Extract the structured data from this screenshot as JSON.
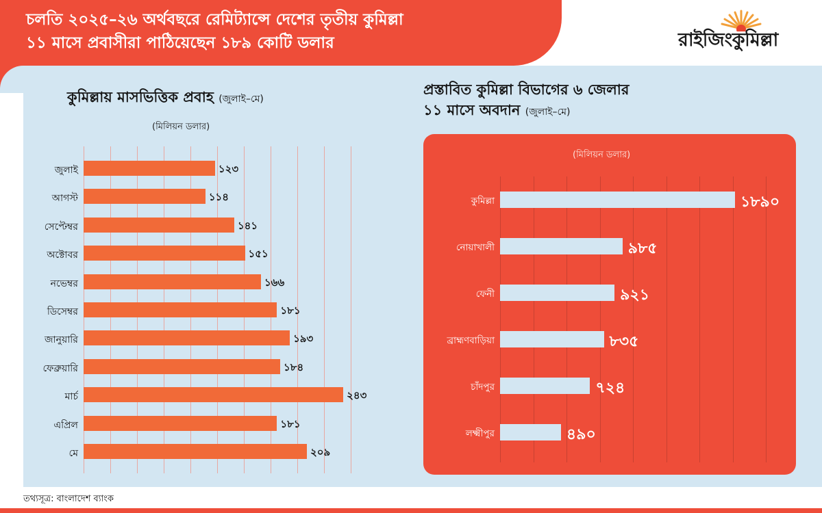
{
  "header": {
    "title_line1": "চলতি ২০২৫–২৬ অর্থবছরে রেমিট্যান্সে দেশের তৃতীয় কুমিল্লা",
    "title_line2": "১১ মাসে প্রবাসীরা পাঠিয়েছেন ১৮৯ কোটি ডলার"
  },
  "logo": {
    "text": "রাইজিংকুমিল্লা"
  },
  "colors": {
    "accent": "#ee4d39",
    "bar_orange": "#f16a38",
    "panel": "#d3e6f2",
    "bar_light": "#d3e6f2"
  },
  "chart_data": [
    {
      "type": "bar",
      "orientation": "horizontal",
      "title": "কুমিল্লায় মাসভিত্তিক প্রবাহ",
      "title_note": "(জুলাই–মে)",
      "unit": "(মিলিয়ন ডলার)",
      "categories": [
        "জুলাই",
        "আগস্ট",
        "সেপ্টেম্বর",
        "অক্টোবর",
        "নভেম্বর",
        "ডিসেম্বর",
        "জানুয়ারি",
        "ফেব্রুয়ারি",
        "মার্চ",
        "এপ্রিল",
        "মে"
      ],
      "values": [
        123,
        114,
        141,
        151,
        166,
        181,
        193,
        184,
        243,
        181,
        209
      ],
      "value_labels": [
        "১২৩",
        "১১৪",
        "১৪১",
        "১৫১",
        "১৬৬",
        "১৮১",
        "১৯৩",
        "১৮৪",
        "২৪৩",
        "১৮১",
        "২০৯"
      ],
      "xlim": [
        0,
        250
      ],
      "grid": true
    },
    {
      "type": "bar",
      "orientation": "horizontal",
      "title_line1": "প্রস্তাবিত কুমিল্লা বিভাগের ৬ জেলার",
      "title_line2": "১১ মাসে অবদান",
      "title_note": "(জুলাই–মে)",
      "unit": "(মিলিয়ন ডলার)",
      "categories": [
        "কুমিল্লা",
        "নোয়াখালী",
        "ফেনী",
        "ব্রাহ্মণবাড়িয়া",
        "চাঁদপুর",
        "লক্ষ্মীপুর"
      ],
      "values": [
        1890,
        985,
        921,
        835,
        724,
        490
      ],
      "value_labels": [
        "১৮৯০",
        "৯৮৫",
        "৯২১",
        "৮৩৫",
        "৭২৪",
        "৪৯০"
      ],
      "xlim": [
        0,
        2000
      ],
      "grid": true
    }
  ],
  "footer": {
    "source": "তথ্যসূত্র: বাংলাদেশ ব্যাংক"
  }
}
